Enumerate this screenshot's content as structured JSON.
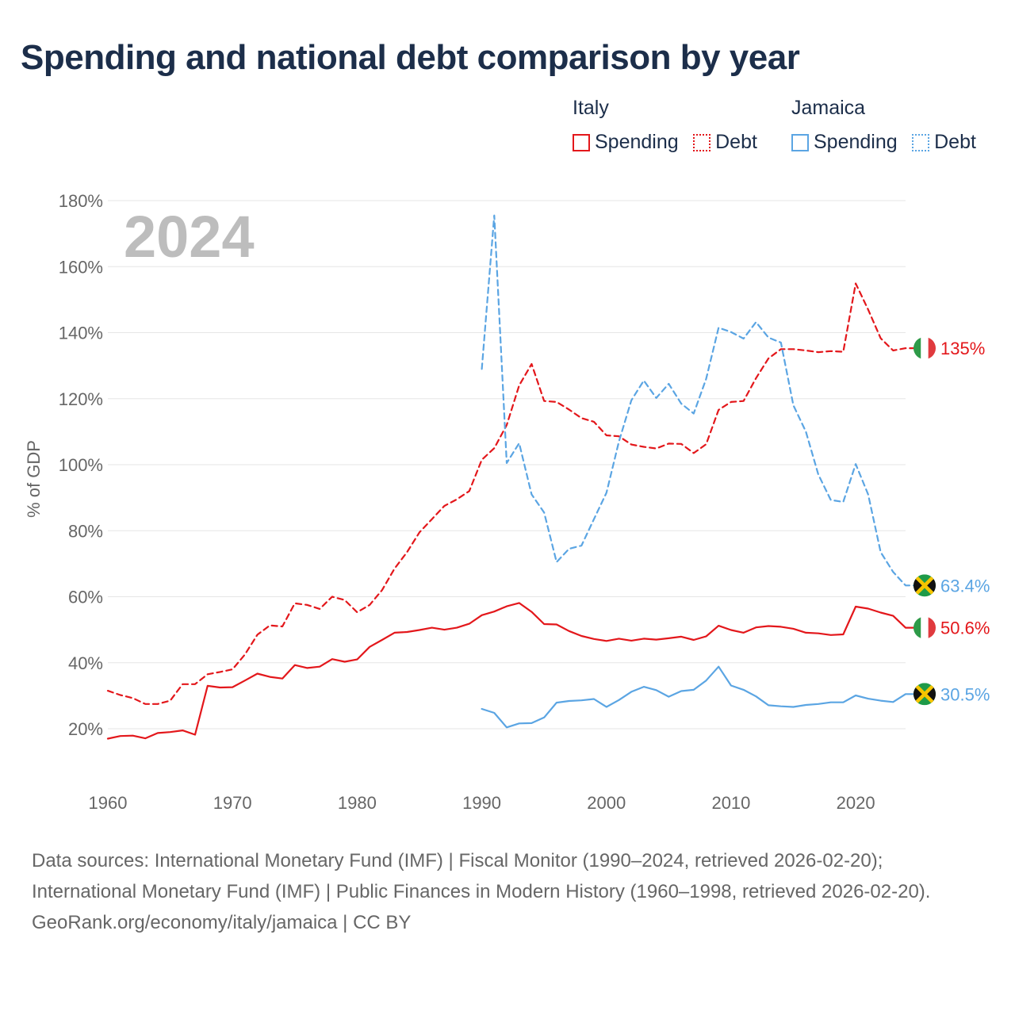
{
  "title": "Spending and national debt comparison by year",
  "legend": {
    "groups": [
      {
        "country": "Italy",
        "items": [
          {
            "label": "Spending",
            "style": "solid",
            "color": "#e3171b"
          },
          {
            "label": "Debt",
            "style": "dotted",
            "color": "#e3171b"
          }
        ]
      },
      {
        "country": "Jamaica",
        "items": [
          {
            "label": "Spending",
            "style": "solid",
            "color": "#5ba5e3"
          },
          {
            "label": "Debt",
            "style": "dotted",
            "color": "#5ba5e3"
          }
        ]
      }
    ]
  },
  "chart_data": {
    "type": "line",
    "year_overlay": "2024",
    "ylabel": "% of GDP",
    "xlabel": "",
    "xlim": [
      1960,
      2024
    ],
    "ylim": [
      10,
      180
    ],
    "x_ticks": [
      "1960",
      "1970",
      "1980",
      "1990",
      "2000",
      "2010",
      "2020"
    ],
    "y_ticks": [
      {
        "value": 20,
        "label": "20%"
      },
      {
        "value": 40,
        "label": "40%"
      },
      {
        "value": 60,
        "label": "60%"
      },
      {
        "value": 80,
        "label": "80%"
      },
      {
        "value": 100,
        "label": "100%"
      },
      {
        "value": 120,
        "label": "120%"
      },
      {
        "value": 140,
        "label": "140%"
      },
      {
        "value": 160,
        "label": "160%"
      },
      {
        "value": 180,
        "label": "180%"
      }
    ],
    "grid": true,
    "series": [
      {
        "name": "Italy Debt",
        "country": "Italy",
        "metric": "Debt",
        "color": "#e3171b",
        "style": "dashed",
        "end_label": "135%",
        "flag": "italy",
        "start_year": 1960,
        "values": [
          31.5,
          30.2,
          29.3,
          27.5,
          27.5,
          28.5,
          33.5,
          33.5,
          36.5,
          37.2,
          38,
          42.5,
          48.5,
          51.3,
          51,
          58,
          57.5,
          56.3,
          60,
          59,
          55.3,
          57.5,
          62,
          68.5,
          73.5,
          79.5,
          83.5,
          87.5,
          89.5,
          92,
          101.5,
          105,
          112,
          124,
          130.5,
          119.3,
          119,
          116.7,
          114.1,
          113,
          108.9,
          108.6,
          106.1,
          105.4,
          104.9,
          106.4,
          106.3,
          103.5,
          106.2,
          116.6,
          119,
          119.3,
          126.2,
          132.2,
          135,
          135,
          134.6,
          134.1,
          134.4,
          134.2,
          154.9,
          147,
          138.3,
          134.6,
          135.3
        ]
      },
      {
        "name": "Italy Spending",
        "country": "Italy",
        "metric": "Spending",
        "color": "#e3171b",
        "style": "solid",
        "end_label": "50.6%",
        "flag": "italy",
        "start_year": 1960,
        "values": [
          17,
          17.8,
          17.9,
          17.1,
          18.7,
          19,
          19.5,
          18.2,
          33,
          32.5,
          32.6,
          34.6,
          36.7,
          35.7,
          35.2,
          39.3,
          38.4,
          38.8,
          41.1,
          40.3,
          41,
          44.8,
          46.9,
          49.1,
          49.3,
          49.9,
          50.6,
          50,
          50.6,
          51.8,
          54.4,
          55.5,
          57.1,
          58.1,
          55.4,
          51.7,
          51.6,
          49.6,
          48.1,
          47.2,
          46.6,
          47.3,
          46.7,
          47.3,
          47,
          47.4,
          47.9,
          46.9,
          48,
          51.2,
          49.9,
          49.1,
          50.7,
          51.1,
          50.9,
          50.3,
          49.1,
          48.9,
          48.4,
          48.6,
          57,
          56.4,
          55.2,
          54.2,
          50.6
        ]
      },
      {
        "name": "Jamaica Debt",
        "country": "Jamaica",
        "metric": "Debt",
        "color": "#5ba5e3",
        "style": "dashed",
        "end_label": "63.4%",
        "flag": "jamaica",
        "start_year": 1990,
        "values": [
          129,
          175.5,
          100.5,
          106.5,
          91,
          85.5,
          70.5,
          74.5,
          75.5,
          83.5,
          91.5,
          107,
          119.5,
          125.5,
          120.2,
          124.5,
          118.5,
          115.5,
          126,
          141.5,
          140.2,
          138.2,
          143.2,
          138.5,
          137,
          118,
          110,
          97,
          89.3,
          88.7,
          100.2,
          91,
          73.5,
          67.5,
          63.4
        ]
      },
      {
        "name": "Jamaica Spending",
        "country": "Jamaica",
        "metric": "Spending",
        "color": "#5ba5e3",
        "style": "solid",
        "end_label": "30.5%",
        "flag": "jamaica",
        "start_year": 1990,
        "values": [
          26,
          24.8,
          20.4,
          21.6,
          21.7,
          23.4,
          27.9,
          28.4,
          28.6,
          29,
          26.6,
          28.7,
          31.2,
          32.7,
          31.7,
          29.7,
          31.4,
          31.8,
          34.6,
          38.8,
          33.1,
          31.8,
          29.8,
          27.1,
          26.8,
          26.6,
          27.2,
          27.5,
          28,
          28,
          30.1,
          29.1,
          28.5,
          28.1,
          30.5
        ]
      }
    ]
  },
  "footer": {
    "line1": "Data sources: International Monetary Fund (IMF) | Fiscal Monitor (1990–2024, retrieved 2026-02-20);",
    "line2": "International Monetary Fund (IMF) | Public Finances in Modern History (1960–1998, retrieved 2026-02-20).",
    "credit": "GeoRank.org/economy/italy/jamaica | CC BY"
  }
}
